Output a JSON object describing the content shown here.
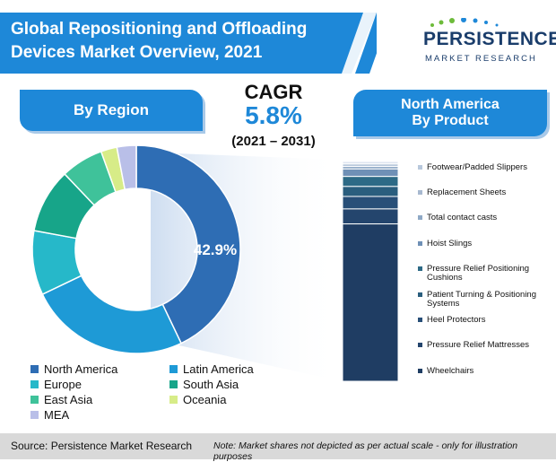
{
  "title": "Global Repositioning and Offloading Devices Market Overview, 2021",
  "logo": {
    "main": "PERSISTENCE",
    "sub": "MARKET RESEARCH"
  },
  "region_pill": "By Region",
  "product_pill": {
    "line1": "North America",
    "line2": "By Product"
  },
  "cagr": {
    "label": "CAGR",
    "value": "5.8%",
    "period": "(2021 – 2031)"
  },
  "footer": {
    "source": "Source: Persistence Market Research",
    "note": "Note: Market shares not depicted as per actual scale - only for illustration purposes"
  },
  "colors": {
    "title_banner": "#1e88d8",
    "pill": "#1e88d8",
    "dark_navy": "#1f3d63",
    "footer_bg": "#d9d9d9"
  },
  "chart_data": [
    {
      "type": "pie",
      "variant": "donut",
      "categories": [
        "North America",
        "Latin America",
        "Europe",
        "South Asia",
        "East Asia",
        "Oceania",
        "MEA"
      ],
      "values": [
        42.9,
        25,
        10,
        10,
        6.6,
        2.5,
        3
      ],
      "colors": [
        "#2e6db4",
        "#1e9ad6",
        "#26b8c9",
        "#17a589",
        "#3fc29a",
        "#d7ec88",
        "#b9bfe8"
      ],
      "data_labels": [
        "42.9%",
        "",
        "",
        "",
        "",
        "",
        ""
      ],
      "legend": [
        "North America",
        "Latin America",
        "Europe",
        "South Asia",
        "East Asia",
        "Oceania",
        "MEA"
      ],
      "legend_placement": "bottom"
    },
    {
      "type": "bar",
      "variant": "stacked",
      "categories": [
        "Footwear/Padded Slippers",
        "Replacement Sheets",
        "Total contact casts",
        "Hoist Slings",
        "Pressure Relief Positioning Cushions",
        "Patient Turning & Positioning Systems",
        "Heel Protectors",
        "Pressure Relief Mattresses",
        "Wheelchairs"
      ],
      "values": [
        1,
        1,
        1,
        3,
        4,
        4,
        5,
        6,
        63
      ],
      "colors": [
        "#dfe6f0",
        "#b8c8dc",
        "#8fa9c6",
        "#6f90b6",
        "#2d6a86",
        "#2a5e7e",
        "#284f78",
        "#24456d",
        "#1f3d63"
      ],
      "legend_placement": "right"
    }
  ]
}
